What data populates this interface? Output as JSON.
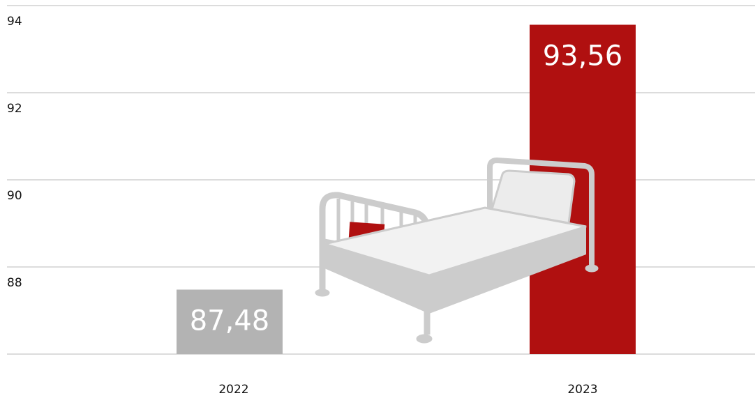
{
  "chart_data": {
    "type": "bar",
    "categories": [
      "2022",
      "2023"
    ],
    "values": [
      87.48,
      93.56
    ],
    "value_labels": [
      "87,48",
      "93,56"
    ],
    "colors": [
      "#b3b3b3",
      "#b01010"
    ],
    "ylim": [
      86,
      94
    ],
    "yticks": [
      88,
      90,
      92,
      94
    ],
    "grid": true
  }
}
